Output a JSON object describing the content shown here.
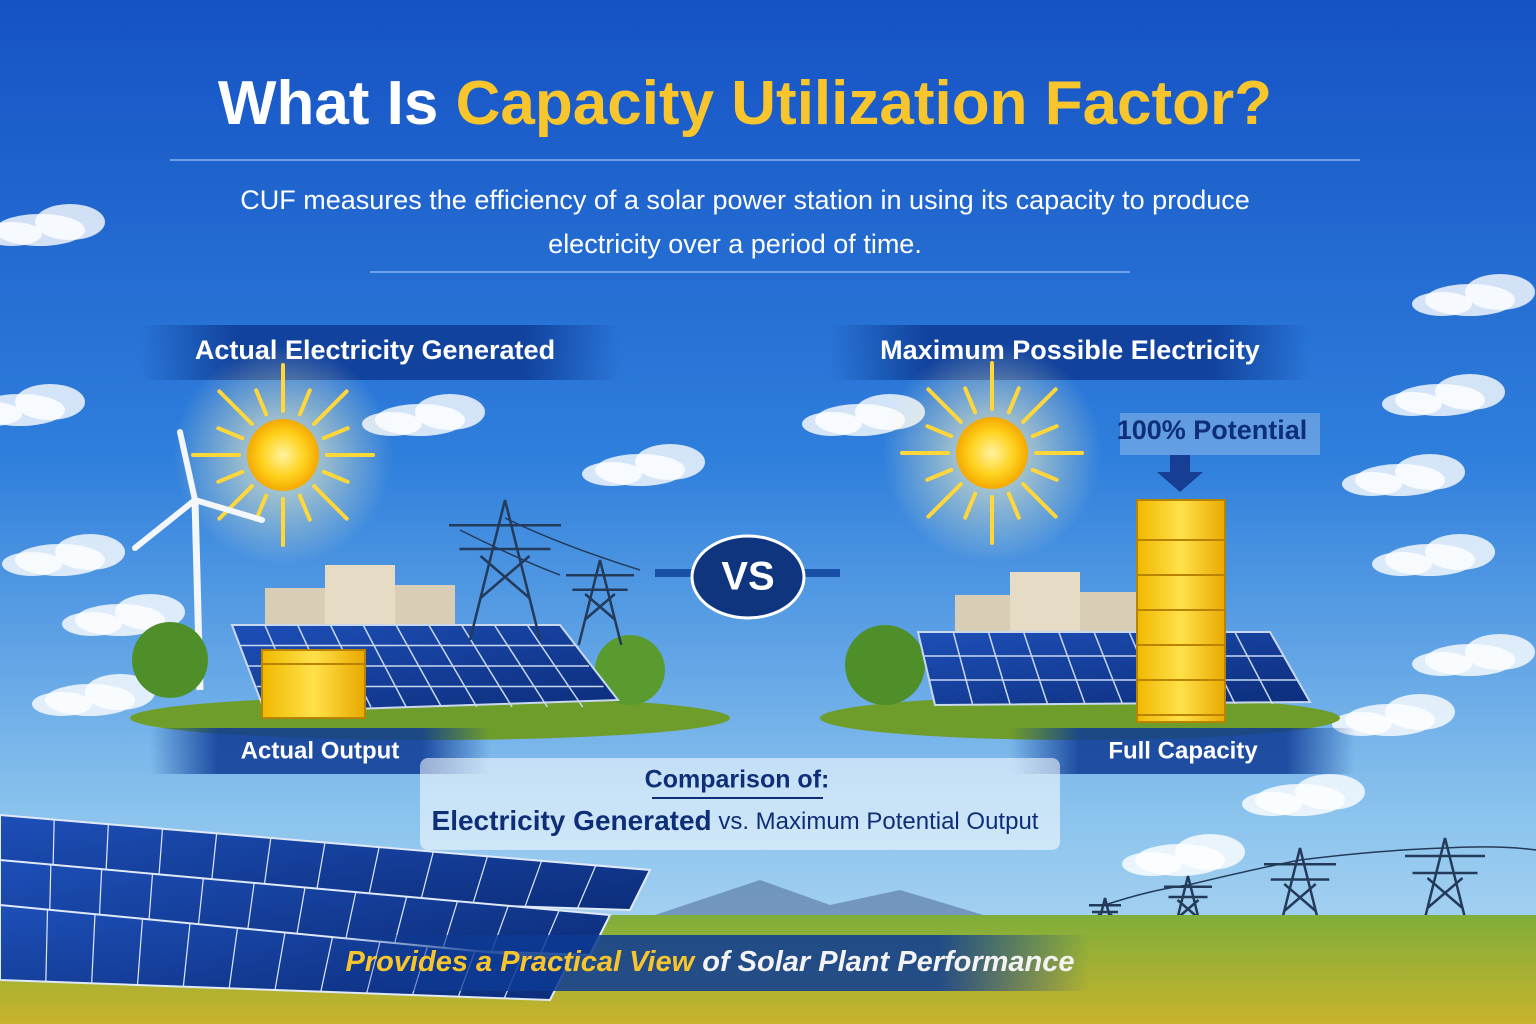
{
  "title": {
    "prefix": "What Is",
    "highlight": "Capacity Utilization Factor?"
  },
  "subtitle": {
    "lines": [
      "CUF measures the efficiency of a solar power station in using its capacity to produce",
      "electricity over a period of time."
    ]
  },
  "left": {
    "heading": "Actual Electricity Generated",
    "label": "Actual Output"
  },
  "versus": "VS",
  "right": {
    "heading": "Maximum Possible Electricity",
    "badge": "100% Potential",
    "label": "Full Capacity"
  },
  "comparison": {
    "heading": "Comparison of:",
    "primary": "Electricity Generated",
    "connector": "vs.",
    "secondary": "Maximum Potential Output"
  },
  "footer": {
    "highlight": "Provides a Practical View",
    "rest": "of Solar Plant Performance"
  }
}
